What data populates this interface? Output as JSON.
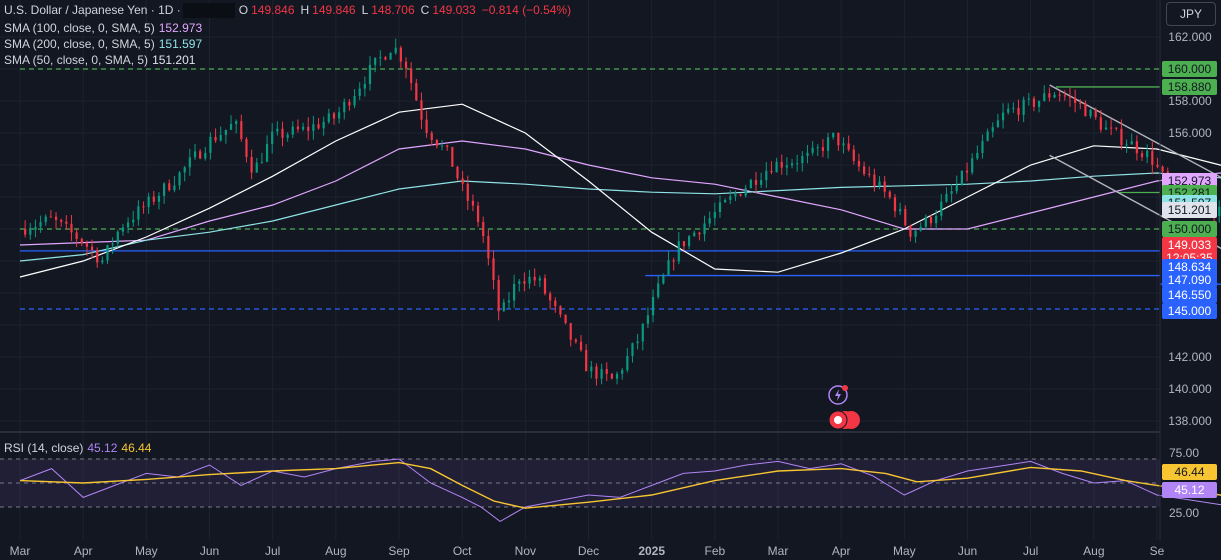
{
  "header": {
    "symbol_title": "U.S. Dollar / Japanese Yen · 1D ·",
    "ohlc": [
      {
        "label": "O",
        "value": "149.846"
      },
      {
        "label": "H",
        "value": "149.846"
      },
      {
        "label": "L",
        "value": "148.706"
      },
      {
        "label": "C",
        "value": "149.033"
      },
      {
        "label": "",
        "value": "−0.814 (−0.54%)"
      }
    ]
  },
  "indicators": [
    {
      "label": "SMA (100, close, 0, SMA, 5)",
      "value": "152.973",
      "color": "#e1a6ff"
    },
    {
      "label": "SMA (200, close, 0, SMA, 5)",
      "value": "151.597",
      "color": "#8ee3e5"
    },
    {
      "label": "SMA (50, close, 0, SMA, 5)",
      "value": "151.201",
      "color": "#ffffff"
    }
  ],
  "rsi_legend": {
    "label": "RSI (14, close)",
    "value": "45.12",
    "ma_value": "46.44",
    "color": "#b185f5",
    "ma_color": "#f7c531"
  },
  "currency_button": "JPY",
  "price_tags": [
    {
      "text": "160.000",
      "price": 160.0,
      "bg": "#4caf50",
      "fg": "#131722",
      "key": "160"
    },
    {
      "text": "158.880",
      "price": 158.88,
      "bg": "#4caf50",
      "fg": "#131722",
      "key": "15888"
    },
    {
      "text": "152.973",
      "price": 152.973,
      "bg": "#e1a6ff",
      "fg": "#131722",
      "key": "sma100"
    },
    {
      "text": "152.281",
      "price": 152.281,
      "bg": "#4caf50",
      "fg": "#131722",
      "key": "15228"
    },
    {
      "text": "151.597",
      "price": 151.597,
      "bg": "#8ee3e5",
      "fg": "#131722",
      "key": "sma200"
    },
    {
      "text": "151.201",
      "price": 151.201,
      "bg": "#e0e3eb",
      "fg": "#131722",
      "key": "sma50"
    },
    {
      "text": "150.000",
      "price": 150.0,
      "bg": "#4caf50",
      "fg": "#131722",
      "key": "150"
    },
    {
      "text": "149.033",
      "price": 149.033,
      "bg": "#f23645",
      "fg": "#ffffff",
      "key": "last"
    },
    {
      "text": "12:05:35",
      "price": 148.2,
      "bg": "#f23645",
      "fg": "#ffffff",
      "key": "countdown"
    },
    {
      "text": "148.634",
      "price": 147.62,
      "bg": "#2962ff",
      "fg": "#ffffff",
      "key": "14863"
    },
    {
      "text": "147.090",
      "price": 146.84,
      "bg": "#2962ff",
      "fg": "#ffffff",
      "key": "14709"
    },
    {
      "text": "146.550",
      "price": 145.88,
      "bg": "#2962ff",
      "fg": "#ffffff",
      "key": "14655"
    },
    {
      "text": "145.000",
      "price": 144.9,
      "bg": "#2962ff",
      "fg": "#ffffff",
      "key": "145"
    }
  ],
  "colors": {
    "up": "#089981",
    "down": "#f23645",
    "green_level": "#4caf50",
    "blue_level": "#2962ff",
    "grid": "#1e222d"
  },
  "chart_data": [
    {
      "type": "candlestick",
      "title": "U.S. Dollar / Japanese Yen · 1D",
      "y_ticks": [
        162,
        160,
        158,
        156,
        154,
        152,
        150,
        148,
        146,
        144,
        142,
        140,
        138
      ],
      "y_tick_labels": [
        "162.000",
        "",
        "158.000",
        "156.000",
        "",
        "",
        "",
        "",
        "",
        "",
        "142.000",
        "140.000",
        "138.000"
      ],
      "ylim": [
        137.2,
        163.0
      ],
      "x_labels": [
        "Mar",
        "Apr",
        "May",
        "Jun",
        "Jul",
        "Aug",
        "Sep",
        "Oct",
        "Nov",
        "Dec",
        "2025",
        "Feb",
        "Mar",
        "Apr",
        "May",
        "Jun",
        "Jul",
        "Aug",
        "Se"
      ],
      "price_path": [
        [
          0,
          150.0
        ],
        [
          0.5,
          150.6
        ],
        [
          1,
          149.2
        ],
        [
          1.3,
          148.0
        ],
        [
          1.6,
          150.2
        ],
        [
          2,
          151.5
        ],
        [
          2.5,
          153.3
        ],
        [
          3,
          155.5
        ],
        [
          3.4,
          156.6
        ],
        [
          3.7,
          153.6
        ],
        [
          4,
          155.8
        ],
        [
          4.5,
          156.2
        ],
        [
          5,
          157.0
        ],
        [
          5.6,
          160.2
        ],
        [
          5.9,
          161.5
        ],
        [
          6.1,
          160.4
        ],
        [
          6.4,
          156.5
        ],
        [
          6.8,
          154.5
        ],
        [
          7.0,
          152.5
        ],
        [
          7.3,
          150.2
        ],
        [
          7.6,
          144.5
        ],
        [
          7.9,
          147.0
        ],
        [
          8.2,
          146.8
        ],
        [
          8.6,
          144.0
        ],
        [
          9.0,
          141.2
        ],
        [
          9.4,
          140.5
        ],
        [
          9.8,
          143.2
        ],
        [
          10.1,
          146.2
        ],
        [
          10.4,
          148.8
        ],
        [
          10.9,
          150.6
        ],
        [
          11.4,
          152.4
        ],
        [
          11.9,
          154.0
        ],
        [
          12.5,
          154.5
        ],
        [
          12.9,
          155.8
        ],
        [
          13.2,
          154.2
        ],
        [
          13.5,
          153.0
        ],
        [
          13.8,
          151.8
        ],
        [
          14.1,
          149.8
        ],
        [
          14.4,
          150.6
        ],
        [
          14.8,
          152.5
        ],
        [
          15.2,
          155.0
        ],
        [
          15.6,
          157.3
        ],
        [
          16.0,
          157.8
        ],
        [
          16.4,
          158.6
        ],
        [
          16.8,
          157.7
        ],
        [
          17.2,
          156.2
        ],
        [
          17.6,
          155.3
        ],
        [
          17.9,
          154.5
        ],
        [
          18.2,
          152.5
        ],
        [
          18.6,
          152.0
        ],
        [
          19.0,
          151.0
        ],
        [
          19.4,
          149.6
        ],
        [
          19.8,
          149.3
        ],
        [
          20.2,
          148.8
        ],
        [
          20.5,
          147.7
        ],
        [
          20.8,
          148.4
        ],
        [
          21.1,
          149.4
        ],
        [
          21.4,
          150.4
        ],
        [
          21.7,
          150.9
        ],
        [
          22.0,
          149.0
        ]
      ],
      "series": [
        {
          "name": "SMA (100, close, 0, SMA, 5)",
          "color": "#e1a6ff",
          "values": [
            [
              0,
              149.0
            ],
            [
              2,
              149.3
            ],
            [
              3,
              150.5
            ],
            [
              4,
              151.5
            ],
            [
              5,
              153.0
            ],
            [
              6,
              155.0
            ],
            [
              7,
              155.5
            ],
            [
              8,
              155.0
            ],
            [
              9,
              154.0
            ],
            [
              10,
              153.2
            ],
            [
              11,
              152.8
            ],
            [
              12,
              152.0
            ],
            [
              13,
              151.2
            ],
            [
              14,
              150.0
            ],
            [
              15,
              150.0
            ],
            [
              16,
              151.0
            ],
            [
              17,
              152.0
            ],
            [
              18,
              153.0
            ],
            [
              19,
              153.5
            ],
            [
              20,
              153.4
            ],
            [
              21,
              153.0
            ],
            [
              22,
              152.9
            ]
          ]
        },
        {
          "name": "SMA (200, close, 0, SMA, 5)",
          "color": "#8ee3e5",
          "values": [
            [
              0,
              148.0
            ],
            [
              1,
              148.4
            ],
            [
              2,
              149.3
            ],
            [
              3,
              149.8
            ],
            [
              4,
              150.5
            ],
            [
              5,
              151.5
            ],
            [
              6,
              152.5
            ],
            [
              7,
              153.0
            ],
            [
              8,
              152.8
            ],
            [
              9,
              152.5
            ],
            [
              10,
              152.3
            ],
            [
              11,
              152.2
            ],
            [
              12,
              152.4
            ],
            [
              13,
              152.6
            ],
            [
              14,
              152.7
            ],
            [
              15,
              152.8
            ],
            [
              16,
              153.0
            ],
            [
              17,
              153.3
            ],
            [
              18,
              153.5
            ],
            [
              19,
              153.2
            ],
            [
              20,
              152.6
            ],
            [
              21,
              152.0
            ],
            [
              22,
              151.6
            ]
          ]
        },
        {
          "name": "SMA (50, close, 0, SMA, 5)",
          "color": "#ffffff",
          "values": [
            [
              0,
              147.0
            ],
            [
              1,
              148.0
            ],
            [
              2,
              149.5
            ],
            [
              3,
              151.3
            ],
            [
              4,
              153.3
            ],
            [
              5,
              155.5
            ],
            [
              6,
              157.3
            ],
            [
              7,
              157.8
            ],
            [
              8,
              156.0
            ],
            [
              9,
              153.0
            ],
            [
              10,
              149.8
            ],
            [
              11,
              147.5
            ],
            [
              12,
              147.3
            ],
            [
              13,
              148.5
            ],
            [
              14,
              150.0
            ],
            [
              15,
              152.0
            ],
            [
              16,
              154.0
            ],
            [
              17,
              155.2
            ],
            [
              18,
              155.0
            ],
            [
              19,
              154.0
            ],
            [
              20,
              152.8
            ],
            [
              21,
              151.8
            ],
            [
              22,
              151.2
            ]
          ]
        }
      ],
      "levels": [
        {
          "price": 160.0,
          "color": "#4caf50",
          "style": "dashed",
          "from": 0
        },
        {
          "price": 158.88,
          "color": "#4caf50",
          "style": "solid",
          "from": 16.4
        },
        {
          "price": 152.281,
          "color": "#4caf50",
          "style": "solid",
          "from": 17.4
        },
        {
          "price": 150.0,
          "color": "#4caf50",
          "style": "dashed",
          "from": 0
        },
        {
          "price": 148.634,
          "color": "#2962ff",
          "style": "solid",
          "from": 0
        },
        {
          "price": 147.09,
          "color": "#2962ff",
          "style": "solid",
          "from": 9.9
        },
        {
          "price": 146.55,
          "color": "#2962ff",
          "style": "solid",
          "from": 19.6
        },
        {
          "price": 145.0,
          "color": "#2962ff",
          "style": "dashed",
          "from": 0
        }
      ],
      "channel": {
        "upper": [
          [
            16.3,
            159.0
          ],
          [
            21.0,
            149.0
          ]
        ],
        "lower": [
          [
            16.3,
            154.6
          ],
          [
            21.3,
            143.9
          ]
        ],
        "color": "#b2b5be"
      }
    },
    {
      "type": "line",
      "title": "RSI (14, close)",
      "ylim": [
        20,
        80
      ],
      "y_ticks": [
        75,
        50,
        25
      ],
      "y_tick_labels": [
        "75.00",
        "",
        "25.00"
      ],
      "band": [
        30,
        70
      ],
      "series": [
        {
          "name": "RSI",
          "color": "#b185f5",
          "values": [
            [
              0,
              52
            ],
            [
              0.5,
              62
            ],
            [
              1,
              38
            ],
            [
              1.5,
              48
            ],
            [
              2,
              58
            ],
            [
              2.5,
              55
            ],
            [
              3,
              65
            ],
            [
              3.5,
              48
            ],
            [
              4,
              60
            ],
            [
              4.5,
              55
            ],
            [
              5,
              62
            ],
            [
              5.6,
              68
            ],
            [
              6,
              70
            ],
            [
              6.5,
              50
            ],
            [
              7,
              38
            ],
            [
              7.3,
              30
            ],
            [
              7.6,
              18
            ],
            [
              8,
              30
            ],
            [
              8.5,
              35
            ],
            [
              9,
              40
            ],
            [
              9.5,
              38
            ],
            [
              10,
              48
            ],
            [
              10.5,
              58
            ],
            [
              11,
              60
            ],
            [
              11.5,
              65
            ],
            [
              12,
              68
            ],
            [
              12.5,
              62
            ],
            [
              13,
              66
            ],
            [
              13.5,
              56
            ],
            [
              14,
              40
            ],
            [
              14.5,
              52
            ],
            [
              15,
              60
            ],
            [
              15.5,
              64
            ],
            [
              16,
              68
            ],
            [
              16.5,
              58
            ],
            [
              17,
              50
            ],
            [
              17.5,
              52
            ],
            [
              18,
              40
            ],
            [
              18.5,
              36
            ],
            [
              19,
              32
            ],
            [
              19.5,
              38
            ],
            [
              20,
              30
            ],
            [
              20.5,
              40
            ],
            [
              21,
              45
            ],
            [
              21.5,
              52
            ],
            [
              22,
              45.12
            ]
          ]
        },
        {
          "name": "RSI MA",
          "color": "#f7c531",
          "values": [
            [
              0,
              52
            ],
            [
              1,
              50
            ],
            [
              2,
              53
            ],
            [
              3,
              57
            ],
            [
              4,
              60
            ],
            [
              5,
              62
            ],
            [
              6,
              67
            ],
            [
              6.5,
              62
            ],
            [
              7,
              48
            ],
            [
              7.5,
              35
            ],
            [
              8,
              29
            ],
            [
              9,
              34
            ],
            [
              10,
              40
            ],
            [
              11,
              52
            ],
            [
              12,
              60
            ],
            [
              13,
              62
            ],
            [
              13.7,
              58
            ],
            [
              14.2,
              51
            ],
            [
              15,
              54
            ],
            [
              16,
              63
            ],
            [
              16.8,
              60
            ],
            [
              17.5,
              52
            ],
            [
              18.5,
              44
            ],
            [
              19.5,
              36
            ],
            [
              20.5,
              35
            ],
            [
              21.2,
              40
            ],
            [
              22,
              46.44
            ]
          ]
        }
      ]
    }
  ]
}
